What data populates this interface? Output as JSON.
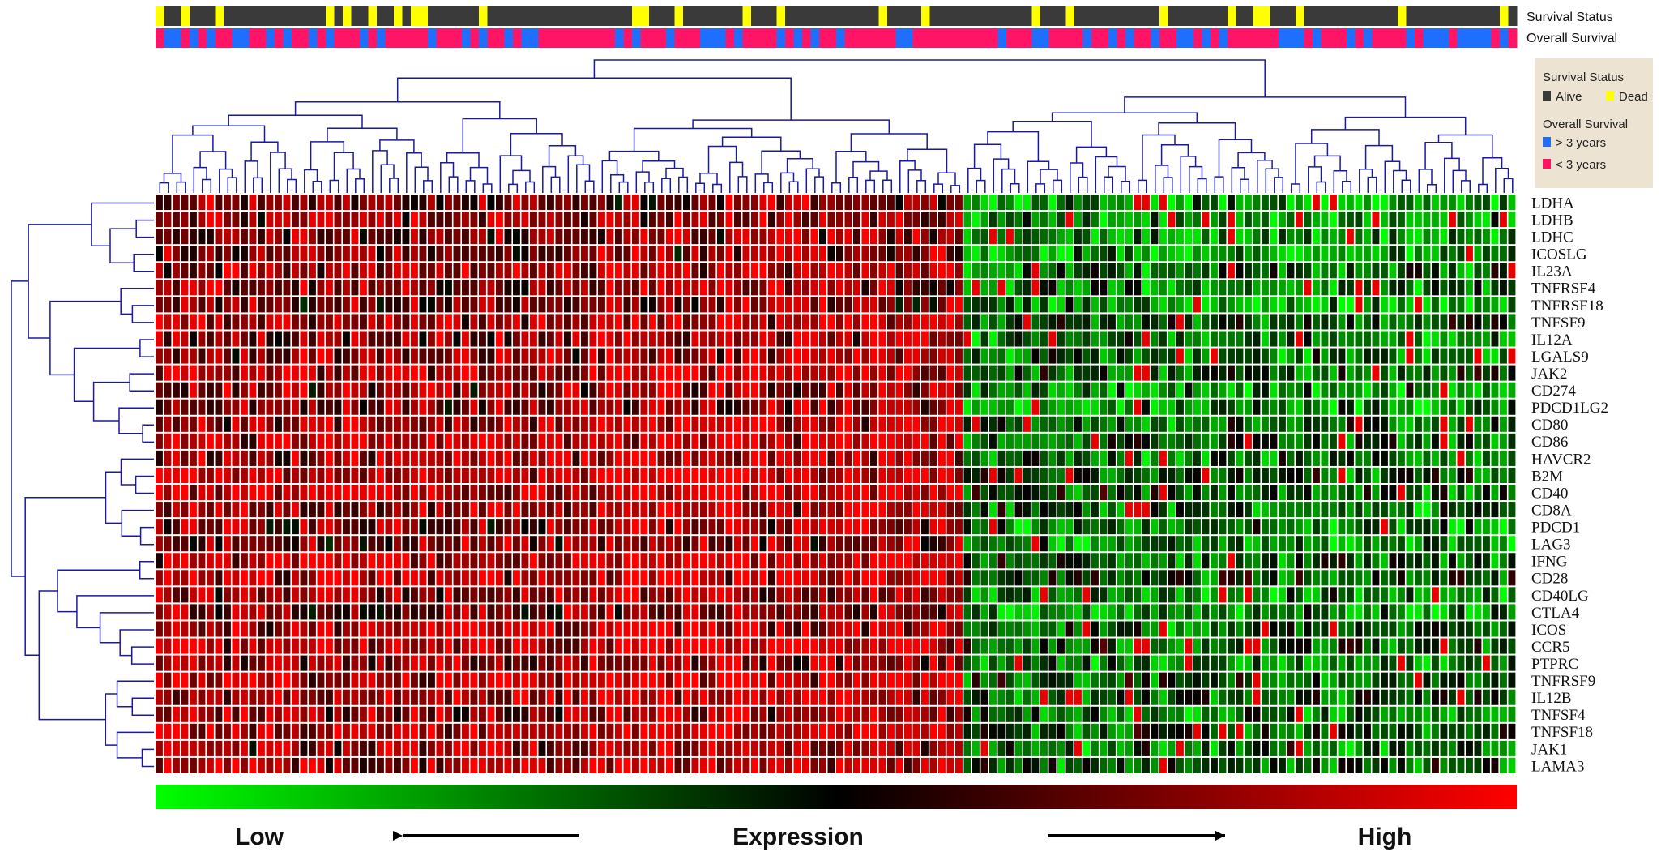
{
  "chart_data": {
    "type": "heatmap",
    "title": "",
    "genes": [
      "LDHA",
      "LDHB",
      "LDHC",
      "ICOSLG",
      "IL23A",
      "TNFRSF4",
      "TNFRSF18",
      "TNFSF9",
      "IL12A",
      "LGALS9",
      "JAK2",
      "CD274",
      "PDCD1LG2",
      "CD80",
      "CD86",
      "HAVCR2",
      "B2M",
      "CD40",
      "CD8A",
      "PDCD1",
      "LAG3",
      "IFNG",
      "CD28",
      "CD40LG",
      "CTLA4",
      "ICOS",
      "CCR5",
      "PTPRC",
      "TNFRSF9",
      "IL12B",
      "TNFSF4",
      "TNFSF18",
      "JAK1",
      "LAMA3"
    ],
    "n_samples": 160,
    "value_range": [
      -1,
      1
    ],
    "clusters": [
      {
        "span": [
          0,
          52
        ],
        "level": 0.55
      },
      {
        "span": [
          52,
          95
        ],
        "level": 0.7
      },
      {
        "span": [
          95,
          160
        ],
        "level": -0.45
      }
    ],
    "tracks": [
      {
        "name": "Survival Status",
        "categories": [
          "Alive",
          "Dead"
        ],
        "colors": [
          "#3a3a3a",
          "#ffff00"
        ]
      },
      {
        "name": "Overall Survival",
        "categories": [
          "> 3 years",
          "< 3 years"
        ],
        "colors": [
          "#1e6fff",
          "#ff1466"
        ]
      }
    ],
    "colorbar": {
      "low_label": "Low",
      "mid_label": "Expression",
      "high_label": "High",
      "low_color": "#00ff00",
      "mid_color": "#000000",
      "high_color": "#ff0000"
    }
  },
  "legend": {
    "survival_title": "Survival Status",
    "alive": "Alive",
    "dead": "Dead",
    "os_title": "Overall Survival",
    "gt3": "> 3 years",
    "lt3": "< 3 years"
  },
  "colors": {
    "background": "#ffffff",
    "legend_box": "#ece3d3",
    "dendrogram": "#1a1aa0",
    "track_dark": "#3a3a3a"
  }
}
